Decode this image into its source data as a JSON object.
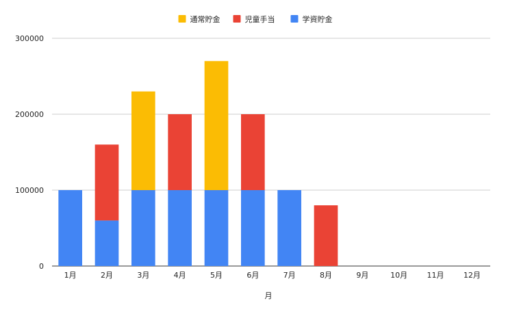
{
  "chart_data": {
    "type": "bar",
    "stacked": true,
    "categories": [
      "1月",
      "2月",
      "3月",
      "4月",
      "5月",
      "6月",
      "7月",
      "8月",
      "9月",
      "10月",
      "11月",
      "12月"
    ],
    "series": [
      {
        "name": "学資貯金",
        "color": "#4285f4",
        "values": [
          100000,
          60000,
          100000,
          100000,
          100000,
          100000,
          100000,
          0,
          0,
          0,
          0,
          0
        ]
      },
      {
        "name": "児童手当",
        "color": "#ea4335",
        "values": [
          0,
          100000,
          0,
          100000,
          0,
          100000,
          0,
          80000,
          0,
          0,
          0,
          0
        ]
      },
      {
        "name": "通常貯金",
        "color": "#fbbc04",
        "values": [
          0,
          0,
          130000,
          0,
          170000,
          0,
          0,
          0,
          0,
          0,
          0,
          0
        ]
      }
    ],
    "legend_order": [
      2,
      1,
      0
    ],
    "legend_position": "top",
    "xlabel": "月",
    "ylabel": "",
    "ylim": [
      0,
      300000
    ],
    "yticks": [
      0,
      100000,
      200000,
      300000
    ],
    "grid": true
  }
}
